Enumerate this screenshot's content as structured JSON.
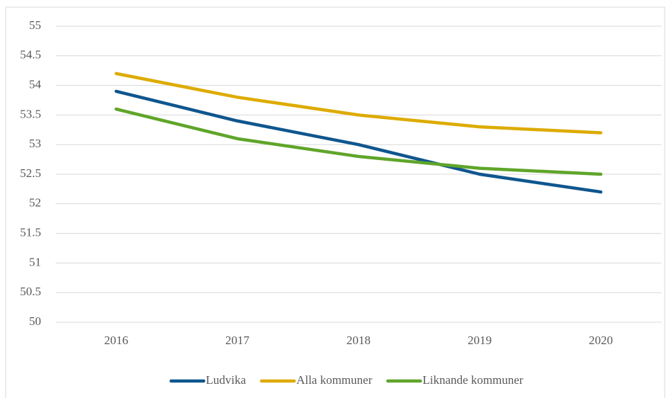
{
  "chart_data": {
    "type": "line",
    "categories": [
      "2016",
      "2017",
      "2018",
      "2019",
      "2020"
    ],
    "series": [
      {
        "name": "Ludvika",
        "color": "#0f568e",
        "values": [
          53.9,
          53.4,
          53.0,
          52.5,
          52.2
        ]
      },
      {
        "name": "Alla kommuner",
        "color": "#ddab00",
        "values": [
          54.2,
          53.8,
          53.5,
          53.3,
          53.2
        ]
      },
      {
        "name": "Liknande kommuner",
        "color": "#5fa52a",
        "values": [
          53.6,
          53.1,
          52.8,
          52.6,
          52.5
        ]
      }
    ],
    "ylim": [
      50,
      55
    ],
    "yticks": [
      50,
      50.5,
      51,
      51.5,
      52,
      52.5,
      53,
      53.5,
      54,
      54.5,
      55
    ],
    "grid": true,
    "legend": "bottom"
  }
}
